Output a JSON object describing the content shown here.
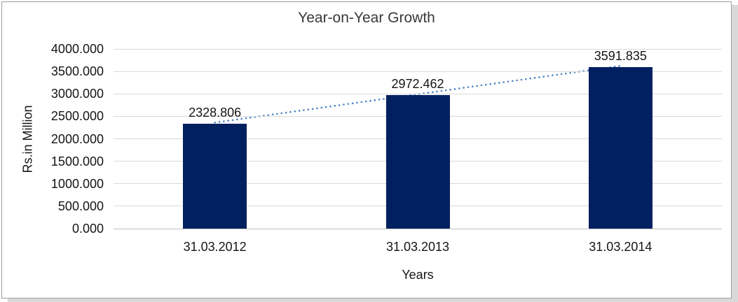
{
  "chart_data": {
    "type": "bar",
    "title": "Year-on-Year Growth",
    "categories": [
      "31.03.2012",
      "31.03.2013",
      "31.03.2014"
    ],
    "values": [
      2328.806,
      2972.462,
      3591.835
    ],
    "data_labels": [
      "2328.806",
      "2972.462",
      "3591.835"
    ],
    "xlabel": "Years",
    "ylabel": "Rs.in Million",
    "ylim": [
      0,
      4000
    ],
    "ytick_interval": 500,
    "ytick_labels": [
      "4000.000",
      "3500.000",
      "3000.000",
      "2500.000",
      "2000.000",
      "1500.000",
      "1000.000",
      "500.000",
      "0.000"
    ],
    "grid": true,
    "legend": false,
    "bar_color": "#002060",
    "trendline": {
      "type": "linear",
      "style": "dotted",
      "color": "#4a82c4"
    }
  }
}
